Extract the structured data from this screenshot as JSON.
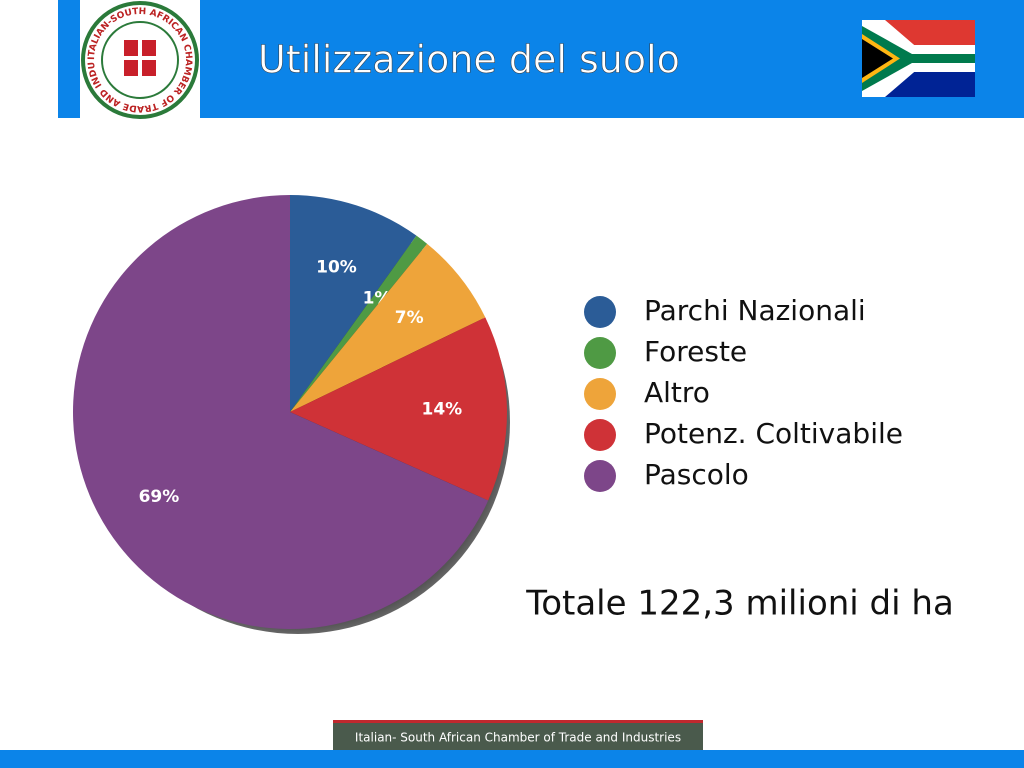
{
  "header": {
    "title": "Utilizzazione del suolo",
    "logo_text": "ITALIAN-SOUTH AFRICAN CHAMBER OF TRADE AND INDUSTRIES"
  },
  "chart_data": {
    "type": "pie",
    "categories": [
      "Parchi Nazionali",
      "Foreste",
      "Altro",
      "Potenz. Coltivabile",
      "Pascolo"
    ],
    "values": [
      10,
      1,
      7,
      14,
      69
    ],
    "value_labels": [
      "10%",
      "1%",
      "7%",
      "14%",
      "69%"
    ],
    "colors": [
      "#2b5c97",
      "#4f9a44",
      "#eea43a",
      "#cf3237",
      "#7d4689"
    ],
    "annotation": "Totale 122,3 milioni di ha"
  },
  "footer": "Italian- South African Chamber of Trade and Industries"
}
